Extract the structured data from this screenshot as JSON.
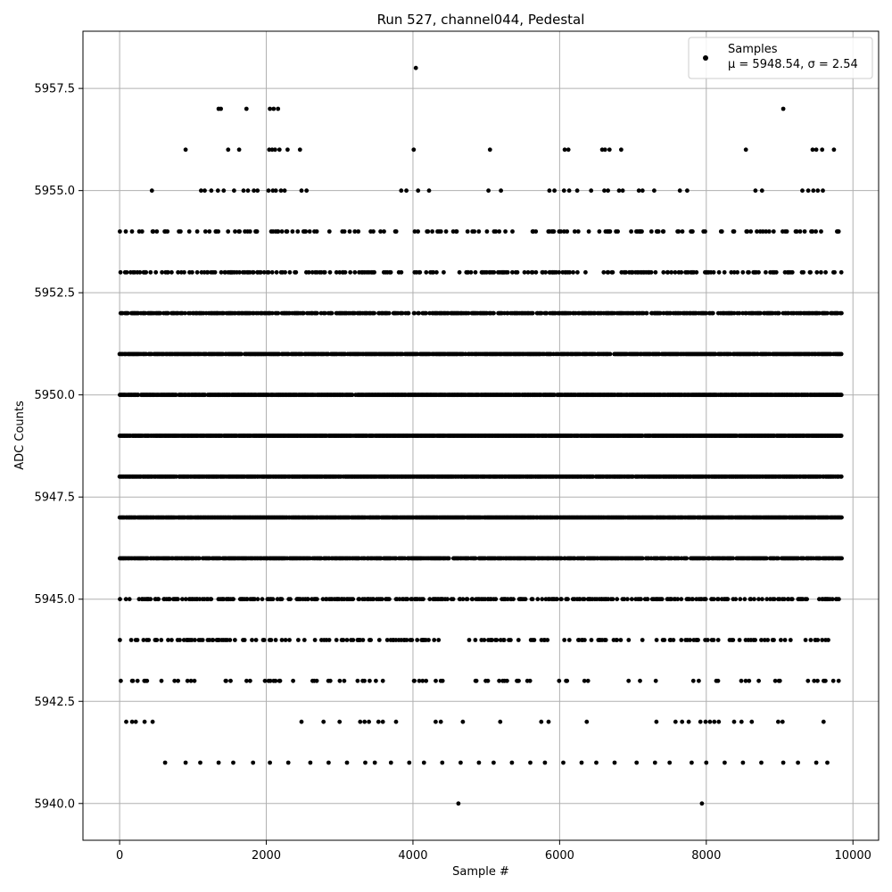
{
  "chart_data": {
    "type": "scatter",
    "title": "Run 527, channel044, Pedestal",
    "xlabel": "Sample #",
    "ylabel": "ADC Counts",
    "xlim": [
      -500,
      10350
    ],
    "ylim": [
      5939.1,
      5958.9
    ],
    "xticks": [
      0,
      2000,
      4000,
      6000,
      8000,
      10000
    ],
    "xtick_labels": [
      "0",
      "2000",
      "4000",
      "6000",
      "8000",
      "10000"
    ],
    "yticks": [
      5940.0,
      5942.5,
      5945.0,
      5947.5,
      5950.0,
      5952.5,
      5955.0,
      5957.5
    ],
    "ytick_labels": [
      "5940.0",
      "5942.5",
      "5945.0",
      "5947.5",
      "5950.0",
      "5952.5",
      "5955.0",
      "5957.5"
    ],
    "grid": true,
    "legend": {
      "position": "top-right",
      "label_line1": "Samples",
      "label_line2": "μ = 5948.54, σ = 2.54"
    },
    "series": [
      {
        "name": "Samples",
        "color": "#000000",
        "x_range": [
          0,
          9840
        ],
        "mean": 5948.54,
        "sigma": 2.54,
        "points": [
          [
            4040,
            5958
          ],
          [
            1350,
            5957
          ],
          [
            1380,
            5957
          ],
          [
            1730,
            5957
          ],
          [
            2050,
            5957
          ],
          [
            2100,
            5957
          ],
          [
            2160,
            5957
          ],
          [
            9050,
            5957
          ],
          [
            900,
            5956
          ],
          [
            1480,
            5956
          ],
          [
            1630,
            5956
          ],
          [
            2040,
            5956
          ],
          [
            2080,
            5956
          ],
          [
            2120,
            5956
          ],
          [
            2180,
            5956
          ],
          [
            2290,
            5956
          ],
          [
            2460,
            5956
          ],
          [
            4010,
            5956
          ],
          [
            5050,
            5956
          ],
          [
            6070,
            5956
          ],
          [
            6120,
            5956
          ],
          [
            6580,
            5956
          ],
          [
            6620,
            5956
          ],
          [
            6680,
            5956
          ],
          [
            6840,
            5956
          ],
          [
            8540,
            5956
          ],
          [
            9450,
            5956
          ],
          [
            9500,
            5956
          ],
          [
            9580,
            5956
          ],
          [
            9740,
            5956
          ],
          [
            440,
            5955
          ],
          [
            1110,
            5955
          ],
          [
            1160,
            5955
          ],
          [
            1250,
            5955
          ],
          [
            1340,
            5955
          ],
          [
            1420,
            5955
          ],
          [
            1560,
            5955
          ],
          [
            1690,
            5955
          ],
          [
            1750,
            5955
          ],
          [
            1830,
            5955
          ],
          [
            1880,
            5955
          ],
          [
            2030,
            5955
          ],
          [
            2090,
            5955
          ],
          [
            2130,
            5955
          ],
          [
            2200,
            5955
          ],
          [
            2250,
            5955
          ],
          [
            2480,
            5955
          ],
          [
            2550,
            5955
          ],
          [
            3840,
            5955
          ],
          [
            3910,
            5955
          ],
          [
            4070,
            5955
          ],
          [
            4220,
            5955
          ],
          [
            5030,
            5955
          ],
          [
            5200,
            5955
          ],
          [
            5860,
            5955
          ],
          [
            5930,
            5955
          ],
          [
            6060,
            5955
          ],
          [
            6130,
            5955
          ],
          [
            6240,
            5955
          ],
          [
            6430,
            5955
          ],
          [
            6610,
            5955
          ],
          [
            6660,
            5955
          ],
          [
            6810,
            5955
          ],
          [
            6860,
            5955
          ],
          [
            7080,
            5955
          ],
          [
            7130,
            5955
          ],
          [
            7290,
            5955
          ],
          [
            7640,
            5955
          ],
          [
            7740,
            5955
          ],
          [
            8670,
            5955
          ],
          [
            8760,
            5955
          ],
          [
            9310,
            5955
          ],
          [
            9390,
            5955
          ],
          [
            9460,
            5955
          ],
          [
            9520,
            5955
          ],
          [
            9590,
            5955
          ],
          [
            620,
            5941
          ],
          [
            900,
            5941
          ],
          [
            1100,
            5941
          ],
          [
            1350,
            5941
          ],
          [
            1550,
            5941
          ],
          [
            1820,
            5941
          ],
          [
            2050,
            5941
          ],
          [
            2300,
            5941
          ],
          [
            2600,
            5941
          ],
          [
            2850,
            5941
          ],
          [
            3100,
            5941
          ],
          [
            3350,
            5941
          ],
          [
            3480,
            5941
          ],
          [
            3700,
            5941
          ],
          [
            3950,
            5941
          ],
          [
            4150,
            5941
          ],
          [
            4400,
            5941
          ],
          [
            4650,
            5941
          ],
          [
            4900,
            5941
          ],
          [
            5100,
            5941
          ],
          [
            5350,
            5941
          ],
          [
            5600,
            5941
          ],
          [
            5800,
            5941
          ],
          [
            6050,
            5941
          ],
          [
            6300,
            5941
          ],
          [
            6500,
            5941
          ],
          [
            6750,
            5941
          ],
          [
            7050,
            5941
          ],
          [
            7300,
            5941
          ],
          [
            7500,
            5941
          ],
          [
            7800,
            5941
          ],
          [
            8000,
            5941
          ],
          [
            8250,
            5941
          ],
          [
            8500,
            5941
          ],
          [
            8750,
            5941
          ],
          [
            9050,
            5941
          ],
          [
            9250,
            5941
          ],
          [
            9500,
            5941
          ],
          [
            9650,
            5941
          ],
          [
            4620,
            5940
          ],
          [
            7940,
            5940
          ],
          [
            90,
            5942
          ],
          [
            170,
            5942
          ],
          [
            220,
            5942
          ],
          [
            340,
            5942
          ],
          [
            450,
            5942
          ],
          [
            2480,
            5942
          ],
          [
            2780,
            5942
          ],
          [
            3000,
            5942
          ],
          [
            3280,
            5942
          ],
          [
            3340,
            5942
          ],
          [
            3400,
            5942
          ],
          [
            3530,
            5942
          ],
          [
            3590,
            5942
          ],
          [
            3770,
            5942
          ],
          [
            4310,
            5942
          ],
          [
            4380,
            5942
          ],
          [
            4680,
            5942
          ],
          [
            5190,
            5942
          ],
          [
            5750,
            5942
          ],
          [
            5850,
            5942
          ],
          [
            6370,
            5942
          ],
          [
            7320,
            5942
          ],
          [
            7580,
            5942
          ],
          [
            7670,
            5942
          ],
          [
            7760,
            5942
          ],
          [
            7920,
            5942
          ],
          [
            7990,
            5942
          ],
          [
            8050,
            5942
          ],
          [
            8110,
            5942
          ],
          [
            8170,
            5942
          ],
          [
            8380,
            5942
          ],
          [
            8480,
            5942
          ],
          [
            8620,
            5942
          ],
          [
            8980,
            5942
          ],
          [
            9040,
            5942
          ],
          [
            9600,
            5942
          ]
        ]
      }
    ]
  }
}
